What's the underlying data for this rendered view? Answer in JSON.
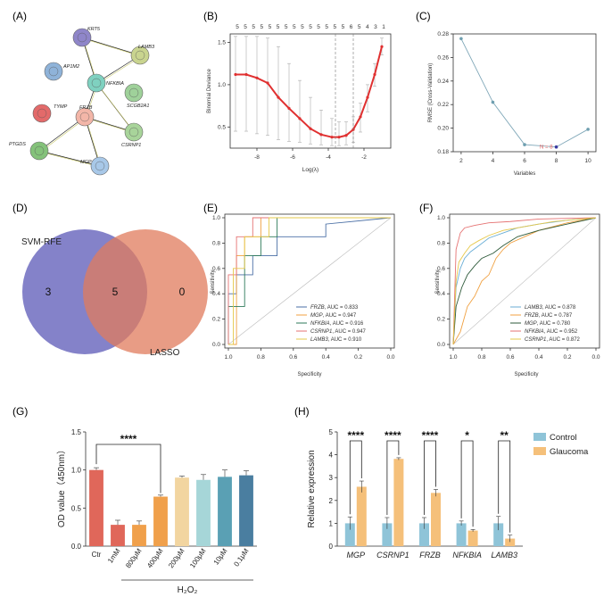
{
  "figure": {
    "panels": {
      "A": "(A)",
      "B": "(B)",
      "C": "(C)",
      "D": "(D)",
      "E": "(E)",
      "F": "(F)",
      "G": "(G)",
      "H": "(H)"
    }
  },
  "network": {
    "nodes": [
      {
        "id": "KRT5",
        "color": "#8f86c9"
      },
      {
        "id": "LAMB3",
        "color": "#c9d48f"
      },
      {
        "id": "AP1M2",
        "color": "#8fb3d9"
      },
      {
        "id": "NFKBIA",
        "color": "#7fd1c0"
      },
      {
        "id": "SCGB2A1",
        "color": "#9fd19a"
      },
      {
        "id": "TYMP",
        "color": "#e36a6a"
      },
      {
        "id": "FRZB",
        "color": "#f3b6a8"
      },
      {
        "id": "PTGDS",
        "color": "#84c27a"
      },
      {
        "id": "CSRNP1",
        "color": "#a8d49a"
      },
      {
        "id": "MGP",
        "color": "#a8c8e8"
      }
    ],
    "edges": [
      [
        "KRT5",
        "LAMB3"
      ],
      [
        "KRT5",
        "NFKBIA"
      ],
      [
        "LAMB3",
        "NFKBIA"
      ],
      [
        "NFKBIA",
        "FRZB"
      ],
      [
        "NFKBIA",
        "CSRNP1"
      ],
      [
        "FRZB",
        "PTGDS"
      ],
      [
        "FRZB",
        "MGP"
      ],
      [
        "PTGDS",
        "MGP"
      ],
      [
        "FRZB",
        "CSRNP1"
      ]
    ]
  },
  "chart_data": [
    {
      "panel": "B",
      "type": "line",
      "xlabel": "Log(λ)",
      "ylabel": "Binomial Deviance",
      "xlim": [
        -9.5,
        -0.5
      ],
      "ylim": [
        0.25,
        1.6
      ],
      "xticks": [
        -8,
        -6,
        -4,
        -2
      ],
      "yticks": [
        0.5,
        1.0,
        1.5
      ],
      "top_counts": [
        "5",
        "5",
        "5",
        "5",
        "5",
        "5",
        "5",
        "5",
        "5",
        "5",
        "5",
        "5",
        "5",
        "5",
        "6",
        "5",
        "4",
        "3",
        "1"
      ],
      "vlines": [
        -3.6,
        -2.6
      ],
      "x": [
        -9.2,
        -8.6,
        -8.0,
        -7.4,
        -6.8,
        -6.2,
        -5.6,
        -5.0,
        -4.4,
        -3.8,
        -3.4,
        -3.0,
        -2.6,
        -2.2,
        -1.8,
        -1.4,
        -1.0
      ],
      "y": [
        1.12,
        1.12,
        1.08,
        1.02,
        0.85,
        0.72,
        0.6,
        0.48,
        0.41,
        0.38,
        0.38,
        0.4,
        0.47,
        0.62,
        0.85,
        1.12,
        1.45
      ],
      "err_upper": [
        1.57,
        1.57,
        1.57,
        1.55,
        1.45,
        1.25,
        1.05,
        0.85,
        0.7,
        0.6,
        0.56,
        0.56,
        0.62,
        0.78,
        1.0,
        1.25,
        1.55
      ],
      "err_lower": [
        0.45,
        0.45,
        0.42,
        0.4,
        0.35,
        0.33,
        0.32,
        0.3,
        0.29,
        0.28,
        0.28,
        0.29,
        0.32,
        0.44,
        0.68,
        0.98,
        1.35
      ]
    },
    {
      "panel": "C",
      "type": "line",
      "xlabel": "Variables",
      "ylabel": "RMSE (Cross-Validation)",
      "x": [
        2,
        4,
        6,
        8,
        10
      ],
      "y": [
        0.276,
        0.222,
        0.186,
        0.184,
        0.199
      ],
      "xlim": [
        1.5,
        10.5
      ],
      "ylim": [
        0.18,
        0.28
      ],
      "xticks": [
        2,
        4,
        6,
        8,
        10
      ],
      "yticks": [
        0.18,
        0.2,
        0.22,
        0.24,
        0.26,
        0.28
      ],
      "annotation": "N = 8"
    },
    {
      "panel": "D",
      "type": "venn",
      "sets": [
        {
          "name": "SVM-RFE",
          "only": "3",
          "color": "#6f6cc0"
        },
        {
          "name": "LASSO",
          "only": "0",
          "color": "#e07b5c"
        }
      ],
      "intersection": "5"
    },
    {
      "panel": "E",
      "type": "line",
      "xlabel": "Specificity",
      "ylabel": "Sensitivity",
      "xticks": [
        "1.0",
        "0.8",
        "0.6",
        "0.4",
        "0.2",
        "0.0"
      ],
      "yticks": [
        "0.0",
        "0.2",
        "0.4",
        "0.6",
        "0.8",
        "1.0"
      ],
      "series": [
        {
          "name": "FRZB",
          "auc": "AUC = 0.833",
          "color": "#4a6fa5",
          "fpr": [
            0,
            0,
            0.05,
            0.05,
            0.15,
            0.15,
            0.3,
            0.3,
            0.6,
            0.6,
            1
          ],
          "tpr": [
            0,
            0.4,
            0.4,
            0.55,
            0.55,
            0.7,
            0.7,
            0.85,
            0.85,
            0.95,
            1
          ]
        },
        {
          "name": "MGP",
          "auc": "AUC = 0.947",
          "color": "#f0a040",
          "fpr": [
            0,
            0.05,
            0.05,
            0.1,
            0.1,
            0.2,
            0.2,
            1
          ],
          "tpr": [
            0,
            0,
            0.7,
            0.7,
            0.85,
            0.85,
            1,
            1
          ]
        },
        {
          "name": "NFKBIA",
          "auc": "AUC = 0.916",
          "color": "#2e7a5a",
          "fpr": [
            0,
            0,
            0.1,
            0.1,
            0.2,
            0.2,
            0.3,
            0.3,
            1
          ],
          "tpr": [
            0,
            0.3,
            0.3,
            0.7,
            0.7,
            0.85,
            0.85,
            1,
            1
          ]
        },
        {
          "name": "CSRNP1",
          "auc": "AUC = 0.947",
          "color": "#e57373",
          "fpr": [
            0,
            0,
            0.05,
            0.05,
            0.15,
            0.15,
            1
          ],
          "tpr": [
            0,
            0.55,
            0.55,
            0.85,
            0.85,
            1,
            1
          ]
        },
        {
          "name": "LAMB3",
          "auc": "AUC = 0.910",
          "color": "#e6c84a",
          "fpr": [
            0,
            0.03,
            0.03,
            0.1,
            0.1,
            0.25,
            0.25,
            1
          ],
          "tpr": [
            0,
            0,
            0.6,
            0.6,
            0.85,
            0.85,
            1,
            1
          ]
        }
      ]
    },
    {
      "panel": "F",
      "type": "line",
      "xlabel": "Specificity",
      "ylabel": "Sensitivity",
      "xticks": [
        "1.0",
        "0.8",
        "0.6",
        "0.4",
        "0.2",
        "0.0"
      ],
      "yticks": [
        "0.0",
        "0.2",
        "0.4",
        "0.6",
        "0.8",
        "1.0"
      ],
      "series": [
        {
          "name": "LAMB3",
          "auc": "AUC = 0.878",
          "color": "#6aaed6",
          "fpr": [
            0,
            0.02,
            0.05,
            0.08,
            0.12,
            0.18,
            0.25,
            0.35,
            0.45,
            0.6,
            0.8,
            1
          ],
          "tpr": [
            0,
            0.45,
            0.6,
            0.68,
            0.73,
            0.78,
            0.84,
            0.88,
            0.92,
            0.95,
            0.98,
            1
          ]
        },
        {
          "name": "FRZB",
          "auc": "AUC = 0.787",
          "color": "#f0a040",
          "fpr": [
            0,
            0.05,
            0.1,
            0.15,
            0.2,
            0.25,
            0.3,
            0.35,
            0.4,
            0.5,
            0.6,
            0.8,
            1
          ],
          "tpr": [
            0,
            0.1,
            0.3,
            0.38,
            0.5,
            0.55,
            0.68,
            0.75,
            0.8,
            0.85,
            0.9,
            0.96,
            1
          ]
        },
        {
          "name": "MGP",
          "auc": "AUC = 0.780",
          "color": "#2e5a3a",
          "fpr": [
            0,
            0.02,
            0.06,
            0.1,
            0.15,
            0.2,
            0.28,
            0.35,
            0.45,
            0.6,
            0.8,
            1
          ],
          "tpr": [
            0,
            0.3,
            0.45,
            0.55,
            0.62,
            0.68,
            0.72,
            0.78,
            0.85,
            0.9,
            0.95,
            1
          ]
        },
        {
          "name": "NFKBIA",
          "auc": "AUC = 0.952",
          "color": "#e57373",
          "fpr": [
            0,
            0.02,
            0.05,
            0.08,
            0.15,
            0.25,
            0.4,
            0.6,
            1
          ],
          "tpr": [
            0,
            0.75,
            0.88,
            0.92,
            0.94,
            0.96,
            0.97,
            0.99,
            1
          ]
        },
        {
          "name": "CSRNP1",
          "auc": "AUC = 0.872",
          "color": "#e6c84a",
          "fpr": [
            0,
            0.02,
            0.04,
            0.08,
            0.12,
            0.18,
            0.25,
            0.35,
            0.5,
            0.7,
            1
          ],
          "tpr": [
            0,
            0.5,
            0.65,
            0.72,
            0.78,
            0.82,
            0.86,
            0.9,
            0.93,
            0.97,
            1
          ]
        }
      ]
    },
    {
      "panel": "G",
      "type": "bar",
      "ylabel": "OD value（450nm）",
      "xlabel": "H₂O₂",
      "categories": [
        "Ctr",
        "1mM",
        "800μM",
        "400μM",
        "200μM",
        "100μM",
        "10μM",
        "0.1μM"
      ],
      "values": [
        1.0,
        0.28,
        0.28,
        0.65,
        0.9,
        0.87,
        0.91,
        0.93
      ],
      "errors": [
        0.03,
        0.06,
        0.05,
        0.02,
        0.02,
        0.07,
        0.09,
        0.06
      ],
      "colors": [
        "#e0675a",
        "#e0675a",
        "#f0a04b",
        "#f0a04b",
        "#f2d5a0",
        "#a6d6d8",
        "#5aa0b4",
        "#4a7ea0"
      ],
      "ylim": [
        0,
        1.5
      ],
      "yticks": [
        "0.0",
        "0.5",
        "1.0",
        "1.5"
      ],
      "significance": {
        "from": 0,
        "to": 3,
        "label": "****"
      }
    },
    {
      "panel": "H",
      "type": "bar",
      "ylabel": "Relative  expression",
      "categories": [
        "MGP",
        "CSRNP1",
        "FRZB",
        "NFKBIA",
        "LAMB3"
      ],
      "series": [
        {
          "name": "Control",
          "color": "#8fc4d8",
          "values": [
            1.0,
            1.0,
            1.0,
            1.0,
            1.0
          ],
          "errors": [
            0.28,
            0.25,
            0.25,
            0.1,
            0.3
          ]
        },
        {
          "name": "Glaucoma",
          "color": "#f5c07a",
          "values": [
            2.6,
            3.82,
            2.33,
            0.68,
            0.33
          ],
          "errors": [
            0.25,
            0.05,
            0.15,
            0.05,
            0.15
          ]
        }
      ],
      "ylim": [
        0,
        5
      ],
      "yticks": [
        "0",
        "1",
        "2",
        "3",
        "4",
        "5"
      ],
      "significance": [
        "****",
        "****",
        "****",
        "*",
        "**"
      ]
    }
  ]
}
